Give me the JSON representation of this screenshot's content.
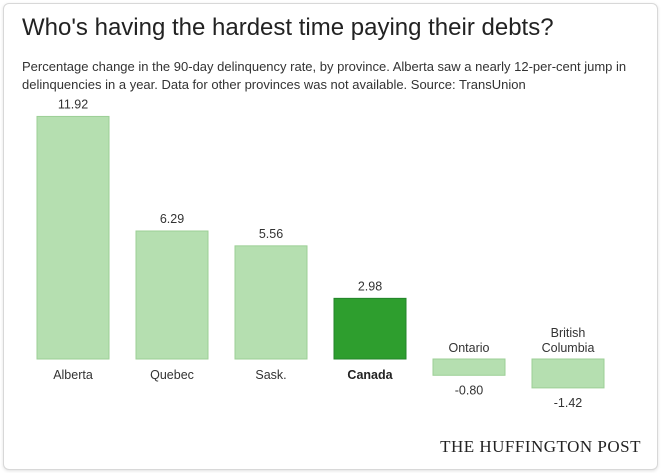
{
  "title": "Who's having the hardest time paying their debts?",
  "subtitle": "Percentage change in the 90-day delinquency rate, by province. Alberta saw a nearly 12-per-cent jump in delinquencies in a year. Data for other provinces was not available. Source: TransUnion",
  "logo_text": "THE HUFFINGTON POST",
  "colors": {
    "bar": "#b5dfb0",
    "bar_border": "#9ccf96",
    "highlight": "#2e9e2e",
    "highlight_border": "#23852a",
    "label": "#333333"
  },
  "chart_data": {
    "type": "bar",
    "title": "Who's having the hardest time paying their debts?",
    "subtitle": "Percentage change in the 90-day delinquency rate, by province. Alberta saw a nearly 12-per-cent jump in delinquencies in a year. Data for other provinces was not available. Source: TransUnion",
    "categories": [
      "Alberta",
      "Quebec",
      "Sask.",
      "Canada",
      "Ontario",
      "British Columbia"
    ],
    "values": [
      11.92,
      6.29,
      5.56,
      2.98,
      -0.8,
      -1.42
    ],
    "value_labels": [
      "11.92",
      "6.29",
      "5.56",
      "2.98",
      "-0.80",
      "-1.42"
    ],
    "highlight": "Canada",
    "xlabel": "",
    "ylabel": "",
    "grid": false,
    "legend": "none"
  }
}
